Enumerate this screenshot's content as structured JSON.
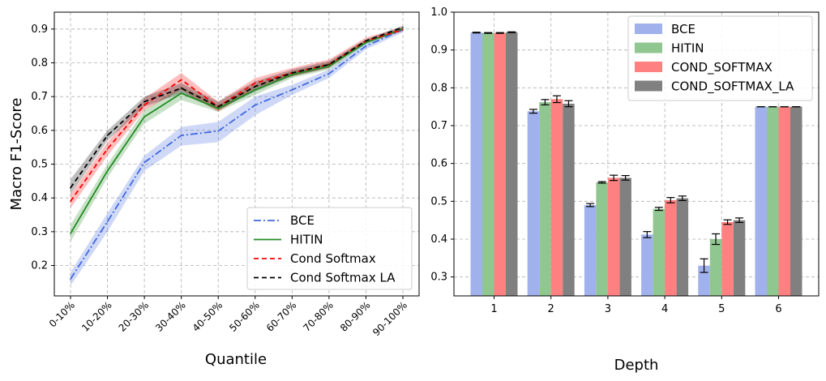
{
  "chart_data": [
    {
      "type": "line",
      "title": "",
      "xlabel": "Quantile",
      "ylabel": "Macro F1-Score",
      "categories": [
        "0-10%",
        "10-20%",
        "20-30%",
        "30-40%",
        "40-50%",
        "50-60%",
        "60-70%",
        "70-80%",
        "80-90%",
        "90-100%"
      ],
      "ylim": [
        0.11,
        0.95
      ],
      "yticks": [
        0.2,
        0.3,
        0.4,
        0.5,
        0.6,
        0.7,
        0.8,
        0.9
      ],
      "grid": true,
      "legend_position": "lower-right",
      "series": [
        {
          "name": "BCE",
          "color": "#4169e1",
          "dash": "dashdot",
          "values": [
            0.16,
            0.33,
            0.505,
            0.585,
            0.598,
            0.675,
            0.72,
            0.768,
            0.85,
            0.898
          ],
          "lower": [
            0.14,
            0.3,
            0.48,
            0.555,
            0.565,
            0.645,
            0.705,
            0.755,
            0.84,
            0.89
          ],
          "upper": [
            0.18,
            0.355,
            0.525,
            0.61,
            0.625,
            0.7,
            0.735,
            0.78,
            0.86,
            0.905
          ]
        },
        {
          "name": "HITIN",
          "color": "#228b22",
          "dash": "solid",
          "values": [
            0.295,
            0.48,
            0.64,
            0.71,
            0.665,
            0.72,
            0.765,
            0.79,
            0.86,
            0.9
          ],
          "lower": [
            0.27,
            0.46,
            0.62,
            0.69,
            0.655,
            0.705,
            0.755,
            0.78,
            0.855,
            0.895
          ],
          "upper": [
            0.32,
            0.5,
            0.66,
            0.73,
            0.675,
            0.735,
            0.775,
            0.8,
            0.865,
            0.905
          ]
        },
        {
          "name": "Cond Softmax",
          "color": "#ff0000",
          "dash": "dashed",
          "values": [
            0.39,
            0.545,
            0.675,
            0.75,
            0.67,
            0.74,
            0.77,
            0.795,
            0.865,
            0.898
          ],
          "lower": [
            0.37,
            0.525,
            0.66,
            0.72,
            0.655,
            0.725,
            0.76,
            0.785,
            0.86,
            0.893
          ],
          "upper": [
            0.41,
            0.565,
            0.695,
            0.77,
            0.685,
            0.755,
            0.785,
            0.81,
            0.875,
            0.905
          ]
        },
        {
          "name": "Cond Softmax LA",
          "color": "#000000",
          "dash": "dashed",
          "values": [
            0.43,
            0.585,
            0.685,
            0.725,
            0.67,
            0.73,
            0.77,
            0.795,
            0.865,
            0.905
          ],
          "lower": [
            0.41,
            0.57,
            0.67,
            0.71,
            0.66,
            0.715,
            0.76,
            0.785,
            0.86,
            0.9
          ],
          "upper": [
            0.455,
            0.6,
            0.7,
            0.74,
            0.685,
            0.745,
            0.78,
            0.805,
            0.87,
            0.91
          ]
        }
      ]
    },
    {
      "type": "bar",
      "title": "",
      "xlabel": "Depth",
      "ylabel": "",
      "categories": [
        "1",
        "2",
        "3",
        "4",
        "5",
        "6"
      ],
      "ylim": [
        0.25,
        1.0
      ],
      "yticks": [
        "0.3",
        "0.4",
        "0.5",
        "0.6",
        "0.7",
        "0.8",
        "0.9",
        "1.0"
      ],
      "grid": true,
      "legend_position": "upper-right",
      "series": [
        {
          "name": "BCE",
          "color": "#a0b1ec",
          "values": [
            0.946,
            0.738,
            0.49,
            0.412,
            0.33,
            0.75
          ],
          "errors": [
            0.001,
            0.005,
            0.004,
            0.008,
            0.018,
            0.0
          ]
        },
        {
          "name": "HITIN",
          "color": "#90c690",
          "values": [
            0.945,
            0.762,
            0.55,
            0.48,
            0.4,
            0.75
          ],
          "errors": [
            0.001,
            0.007,
            0.002,
            0.004,
            0.014,
            0.0
          ]
        },
        {
          "name": "COND_SOFTMAX",
          "color": "#ff8080",
          "values": [
            0.945,
            0.77,
            0.562,
            0.503,
            0.445,
            0.75
          ],
          "errors": [
            0.001,
            0.009,
            0.007,
            0.007,
            0.006,
            0.0
          ]
        },
        {
          "name": "COND_SOFTMAX_LA",
          "color": "#808080",
          "values": [
            0.947,
            0.758,
            0.562,
            0.508,
            0.45,
            0.75
          ],
          "errors": [
            0.001,
            0.008,
            0.006,
            0.006,
            0.006,
            0.0
          ]
        }
      ]
    }
  ]
}
